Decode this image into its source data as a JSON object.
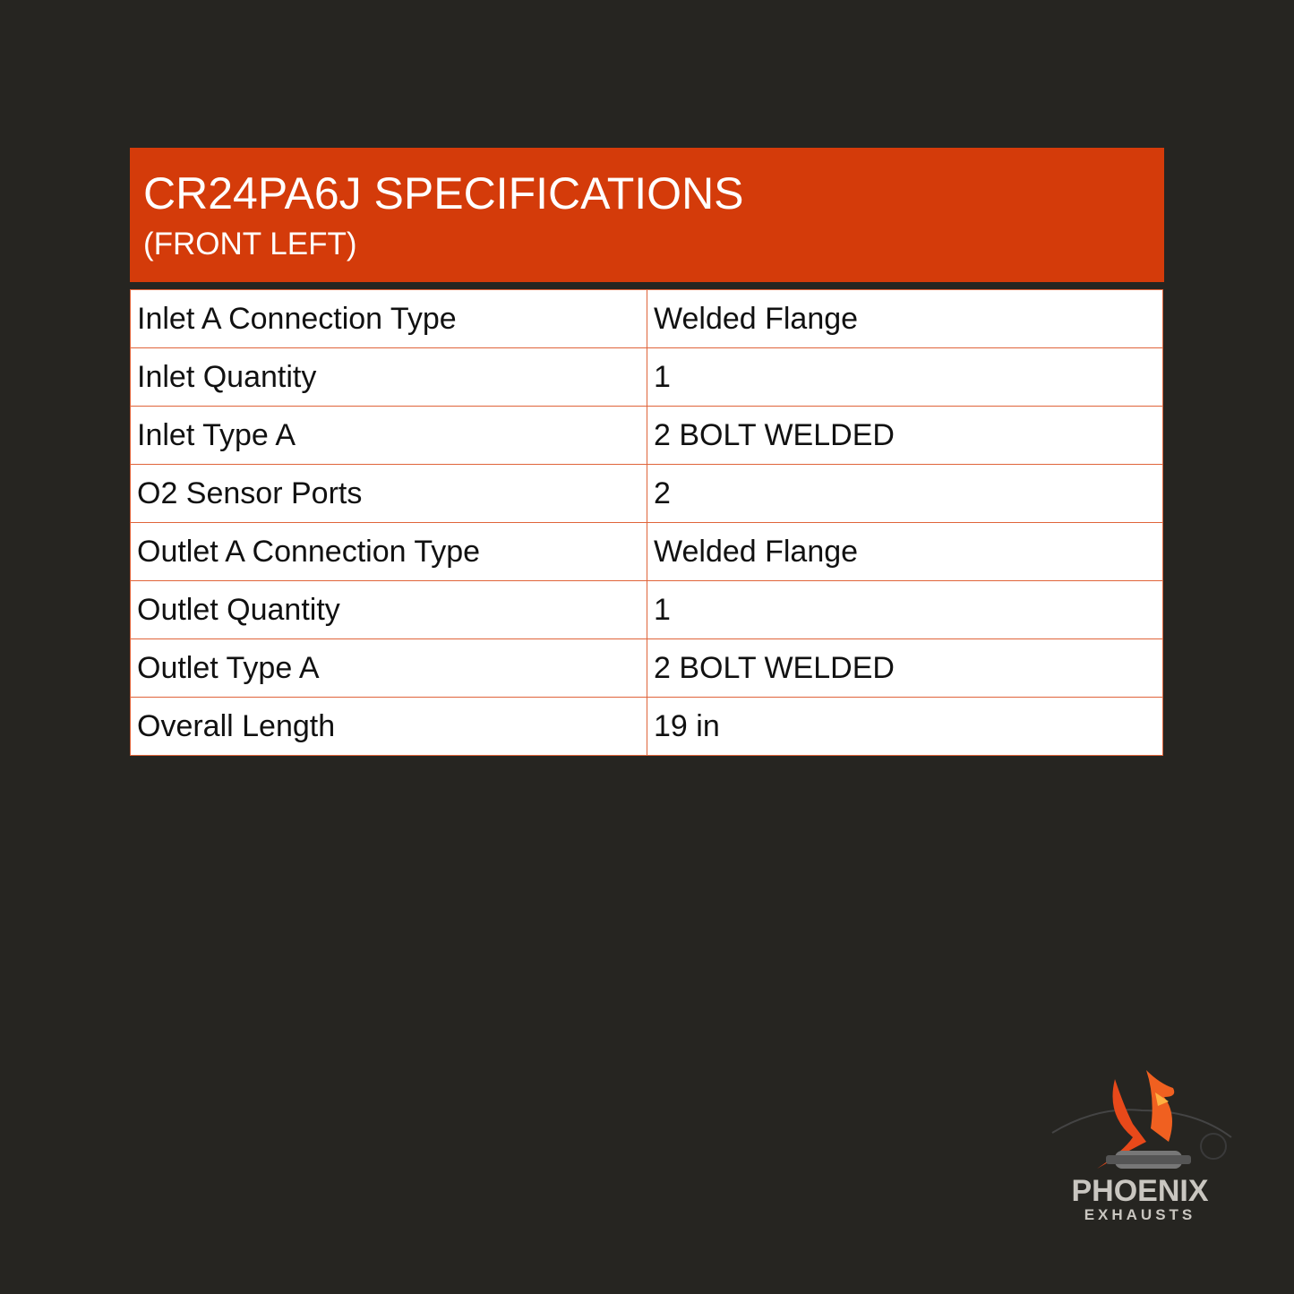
{
  "header": {
    "title": "CR24PA6J SPECIFICATIONS",
    "subtitle": "(FRONT LEFT)"
  },
  "specs": [
    {
      "label": "Inlet A Connection Type",
      "value": "Welded Flange"
    },
    {
      "label": "Inlet Quantity",
      "value": "1"
    },
    {
      "label": "Inlet Type A",
      "value": "2 BOLT WELDED"
    },
    {
      "label": "O2 Sensor Ports",
      "value": "2"
    },
    {
      "label": "Outlet A Connection Type",
      "value": "Welded Flange"
    },
    {
      "label": "Outlet Quantity",
      "value": "1"
    },
    {
      "label": "Outlet Type A",
      "value": "2 BOLT WELDED"
    },
    {
      "label": "Overall Length",
      "value": "19 in"
    }
  ],
  "logo": {
    "name": "PHOENIX",
    "tagline": "EXHAUSTS"
  },
  "colors": {
    "background": "#262521",
    "accent": "#d43b0a",
    "border": "#e0643a"
  }
}
